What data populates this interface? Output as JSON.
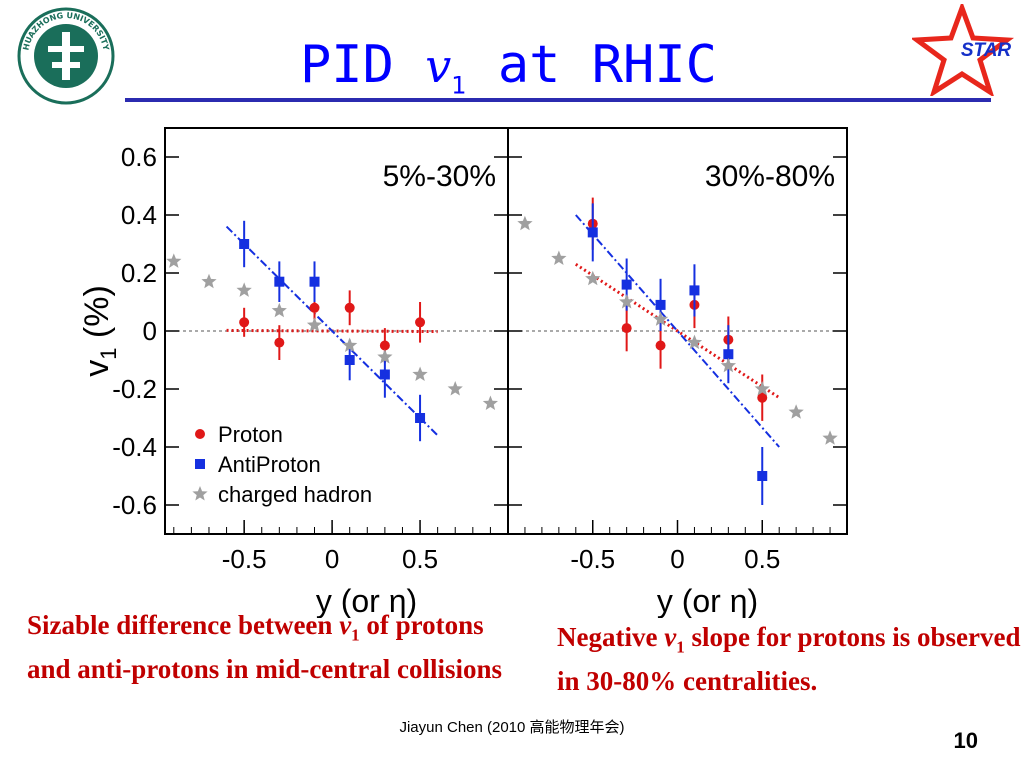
{
  "slide": {
    "title_prefix": "PID ",
    "title_var": "v",
    "title_sub": "1",
    "title_suffix": " at RHIC",
    "logo_text": "HUAZHONG UNIVERSITY",
    "star_text": "STAR",
    "caption_left": {
      "a": "Sizable difference between ",
      "v": "v",
      "sub": "1",
      "b": " of protons and anti-protons in mid-central collisions"
    },
    "caption_right": {
      "a": "Negative ",
      "v": "v",
      "sub": "1",
      "b": " slope for protons is observed in 30-80% centralities."
    },
    "footer": "Jiayun Chen (2010 高能物理年会)",
    "page_number": "10",
    "colors": {
      "title": "#0000ff",
      "rule": "#2b2bb0",
      "caption": "#c00000",
      "star": "#e8271c",
      "logo": "#1a6e5a"
    }
  },
  "chart_data": [
    {
      "type": "scatter",
      "title": "5%-30%",
      "xlabel": "y (or η)",
      "ylabel": "v1 (%)",
      "xlim": [
        -0.95,
        1.0
      ],
      "ylim": [
        -0.7,
        0.7
      ],
      "xticks": [
        -0.5,
        0,
        0.5
      ],
      "yticks": [
        0.6,
        0.4,
        0.2,
        0,
        -0.2,
        -0.4,
        -0.6
      ],
      "legend": [
        "Proton",
        "AntiProton",
        "charged hadron"
      ],
      "legend_position": "bottom-left",
      "series": [
        {
          "name": "Proton",
          "color": "#e01818",
          "marker": "circle",
          "x": [
            -0.5,
            -0.3,
            -0.1,
            0.1,
            0.3,
            0.5
          ],
          "y": [
            0.03,
            -0.04,
            0.08,
            0.08,
            -0.05,
            0.03
          ],
          "err": [
            0.05,
            0.06,
            0.06,
            0.06,
            0.06,
            0.07
          ]
        },
        {
          "name": "AntiProton",
          "color": "#1530e0",
          "marker": "square",
          "x": [
            -0.5,
            -0.3,
            -0.1,
            0.1,
            0.3,
            0.5
          ],
          "y": [
            0.3,
            0.17,
            0.17,
            -0.1,
            -0.15,
            -0.3
          ],
          "err": [
            0.08,
            0.07,
            0.07,
            0.07,
            0.08,
            0.08
          ]
        },
        {
          "name": "charged hadron",
          "color": "#a0a0a0",
          "marker": "star",
          "x": [
            -0.9,
            -0.7,
            -0.5,
            -0.3,
            -0.1,
            0.1,
            0.3,
            0.5,
            0.7,
            0.9
          ],
          "y": [
            0.24,
            0.17,
            0.14,
            0.07,
            0.02,
            -0.05,
            -0.09,
            -0.15,
            -0.2,
            -0.25
          ]
        }
      ],
      "fits": [
        {
          "series": "Proton",
          "color": "#e01818",
          "style": "dotted",
          "x": [
            -0.6,
            0.6
          ],
          "y": [
            0.002,
            -0.002
          ]
        },
        {
          "series": "AntiProton",
          "color": "#1530e0",
          "style": "dashdot",
          "x": [
            -0.6,
            0.6
          ],
          "y": [
            0.36,
            -0.36
          ]
        }
      ]
    },
    {
      "type": "scatter",
      "title": "30%-80%",
      "xlabel": "y (or η)",
      "ylabel": "",
      "xlim": [
        -1.0,
        1.0
      ],
      "ylim": [
        -0.7,
        0.7
      ],
      "xticks": [
        -0.5,
        0,
        0.5
      ],
      "series": [
        {
          "name": "Proton",
          "color": "#e01818",
          "marker": "circle",
          "x": [
            -0.5,
            -0.3,
            -0.1,
            0.1,
            0.3,
            0.5
          ],
          "y": [
            0.37,
            0.01,
            -0.05,
            0.09,
            -0.03,
            -0.23
          ],
          "err": [
            0.09,
            0.08,
            0.08,
            0.08,
            0.08,
            0.08
          ]
        },
        {
          "name": "AntiProton",
          "color": "#1530e0",
          "marker": "square",
          "x": [
            -0.5,
            -0.3,
            -0.1,
            0.1,
            0.3,
            0.5
          ],
          "y": [
            0.34,
            0.16,
            0.09,
            0.14,
            -0.08,
            -0.5
          ],
          "err": [
            0.1,
            0.09,
            0.09,
            0.09,
            0.1,
            0.1
          ]
        },
        {
          "name": "charged hadron",
          "color": "#a0a0a0",
          "marker": "star",
          "x": [
            -0.9,
            -0.7,
            -0.5,
            -0.3,
            -0.1,
            0.1,
            0.3,
            0.5,
            0.7,
            0.9
          ],
          "y": [
            0.37,
            0.25,
            0.18,
            0.1,
            0.04,
            -0.04,
            -0.12,
            -0.2,
            -0.28,
            -0.37
          ]
        }
      ],
      "fits": [
        {
          "series": "Proton",
          "color": "#e01818",
          "style": "dotted",
          "x": [
            -0.6,
            0.6
          ],
          "y": [
            0.23,
            -0.23
          ]
        },
        {
          "series": "AntiProton",
          "color": "#1530e0",
          "style": "dashdot",
          "x": [
            -0.6,
            0.6
          ],
          "y": [
            0.4,
            -0.4
          ]
        }
      ]
    }
  ]
}
